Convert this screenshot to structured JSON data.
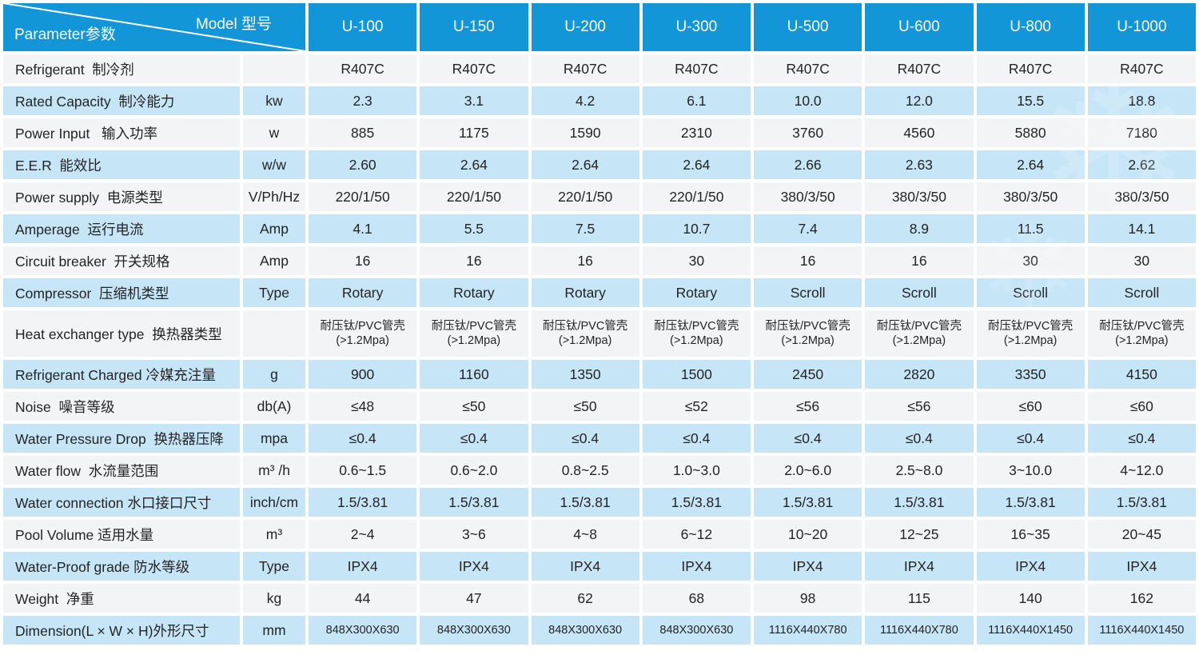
{
  "table": {
    "corner": {
      "model_label": "Model 型号",
      "parameter_label": "Parameter参数"
    },
    "models": [
      "U-100",
      "U-150",
      "U-200",
      "U-300",
      "U-500",
      "U-600",
      "U-800",
      "U-1000"
    ],
    "rows": [
      {
        "label": "Refrigerant  制冷剂",
        "unit": "",
        "values": [
          "R407C",
          "R407C",
          "R407C",
          "R407C",
          "R407C",
          "R407C",
          "R407C",
          "R407C"
        ]
      },
      {
        "label": "Rated Capacity  制冷能力",
        "unit": "kw",
        "values": [
          "2.3",
          "3.1",
          "4.2",
          "6.1",
          "10.0",
          "12.0",
          "15.5",
          "18.8"
        ]
      },
      {
        "label": "Power Input   输入功率",
        "unit": "w",
        "values": [
          "885",
          "1175",
          "1590",
          "2310",
          "3760",
          "4560",
          "5880",
          "7180"
        ]
      },
      {
        "label": "E.E.R  能效比",
        "unit": "w/w",
        "values": [
          "2.60",
          "2.64",
          "2.64",
          "2.64",
          "2.66",
          "2.63",
          "2.64",
          "2.62"
        ]
      },
      {
        "label": "Power supply  电源类型",
        "unit": "V/Ph/Hz",
        "values": [
          "220/1/50",
          "220/1/50",
          "220/1/50",
          "220/1/50",
          "380/3/50",
          "380/3/50",
          "380/3/50",
          "380/3/50"
        ]
      },
      {
        "label": "Amperage  运行电流",
        "unit": "Amp",
        "values": [
          "4.1",
          "5.5",
          "7.5",
          "10.7",
          "7.4",
          "8.9",
          "11.5",
          "14.1"
        ]
      },
      {
        "label": "Circuit breaker  开关规格",
        "unit": "Amp",
        "values": [
          "16",
          "16",
          "16",
          "30",
          "16",
          "16",
          "30",
          "30"
        ]
      },
      {
        "label": "Compressor  压缩机类型",
        "unit": "Type",
        "values": [
          "Rotary",
          "Rotary",
          "Rotary",
          "Rotary",
          "Scroll",
          "Scroll",
          "Scroll",
          "Scroll"
        ]
      },
      {
        "label": "Heat exchanger type  换热器类型",
        "unit": "",
        "values": [
          "耐压钛/PVC管壳\n(>1.2Mpa)",
          "耐压钛/PVC管壳\n(>1.2Mpa)",
          "耐压钛/PVC管壳\n(>1.2Mpa)",
          "耐压钛/PVC管壳\n(>1.2Mpa)",
          "耐压钛/PVC管壳\n(>1.2Mpa)",
          "耐压钛/PVC管壳\n(>1.2Mpa)",
          "耐压钛/PVC管壳\n(>1.2Mpa)",
          "耐压钛/PVC管壳\n(>1.2Mpa)"
        ]
      },
      {
        "label": "Refrigerant Charged 冷媒充注量",
        "unit": "g",
        "values": [
          "900",
          "1160",
          "1350",
          "1500",
          "2450",
          "2820",
          "3350",
          "4150"
        ]
      },
      {
        "label": "Noise  噪音等级",
        "unit": "db(A)",
        "values": [
          "≤48",
          "≤50",
          "≤50",
          "≤52",
          "≤56",
          "≤56",
          "≤60",
          "≤60"
        ]
      },
      {
        "label": "Water Pressure Drop  换热器压降",
        "unit": "mpa",
        "values": [
          "≤0.4",
          "≤0.4",
          "≤0.4",
          "≤0.4",
          "≤0.4",
          "≤0.4",
          "≤0.4",
          "≤0.4"
        ]
      },
      {
        "label": "Water flow  水流量范围",
        "unit": "m³ /h",
        "values": [
          "0.6~1.5",
          "0.6~2.0",
          "0.8~2.5",
          "1.0~3.0",
          "2.0~6.0",
          "2.5~8.0",
          "3~10.0",
          "4~12.0"
        ]
      },
      {
        "label": "Water connection 水口接口尺寸",
        "unit": "inch/cm",
        "values": [
          "1.5/3.81",
          "1.5/3.81",
          "1.5/3.81",
          "1.5/3.81",
          "1.5/3.81",
          "1.5/3.81",
          "1.5/3.81",
          "1.5/3.81"
        ]
      },
      {
        "label": "Pool Volume 适用水量",
        "unit": "m³",
        "values": [
          "2~4",
          "3~6",
          "4~8",
          "6~12",
          "10~20",
          "12~25",
          "16~35",
          "20~45"
        ]
      },
      {
        "label": "Water-Proof grade 防水等级",
        "unit": "Type",
        "values": [
          "IPX4",
          "IPX4",
          "IPX4",
          "IPX4",
          "IPX4",
          "IPX4",
          "IPX4",
          "IPX4"
        ]
      },
      {
        "label": "Weight  净重",
        "unit": "kg",
        "values": [
          "44",
          "47",
          "62",
          "68",
          "98",
          "115",
          "140",
          "162"
        ]
      },
      {
        "label": "Dimension(L × W × H)外形尺寸",
        "unit": "mm",
        "values": [
          "848X300X630",
          "848X300X630",
          "848X300X630",
          "848X300X630",
          "1116X440X780",
          "1116X440X780",
          "1116X440X1450",
          "1116X440X1450"
        ]
      }
    ]
  },
  "icons": {
    "watermark": "❄"
  },
  "colors": {
    "header_blue": "#1296d7",
    "row_light_blue": "#c6e5f7",
    "row_light_gray": "#f2f4f6",
    "header_text": "#ffffff",
    "body_text": "#242424"
  }
}
